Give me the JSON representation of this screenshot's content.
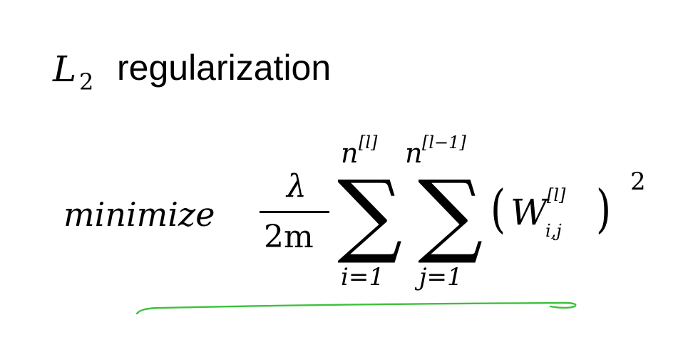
{
  "title": {
    "symbol": "L",
    "subscript": "2",
    "text": "regularization"
  },
  "formula": {
    "prefix": "minimize",
    "fraction": {
      "numerator": "λ",
      "denominator": "2m"
    },
    "sum1": {
      "symbol": "∑",
      "upper": "n",
      "upper_sup": "[l]",
      "lower": "i=1"
    },
    "sum2": {
      "symbol": "∑",
      "upper": "n",
      "upper_sup": "[l−1]",
      "lower": "j=1"
    },
    "term": {
      "open_paren": "(",
      "base": "W",
      "sup": "[l]",
      "sub": "i,j",
      "close_paren": ")",
      "exponent": "2"
    }
  },
  "annotation": {
    "underline_color": "#3cc13c"
  }
}
